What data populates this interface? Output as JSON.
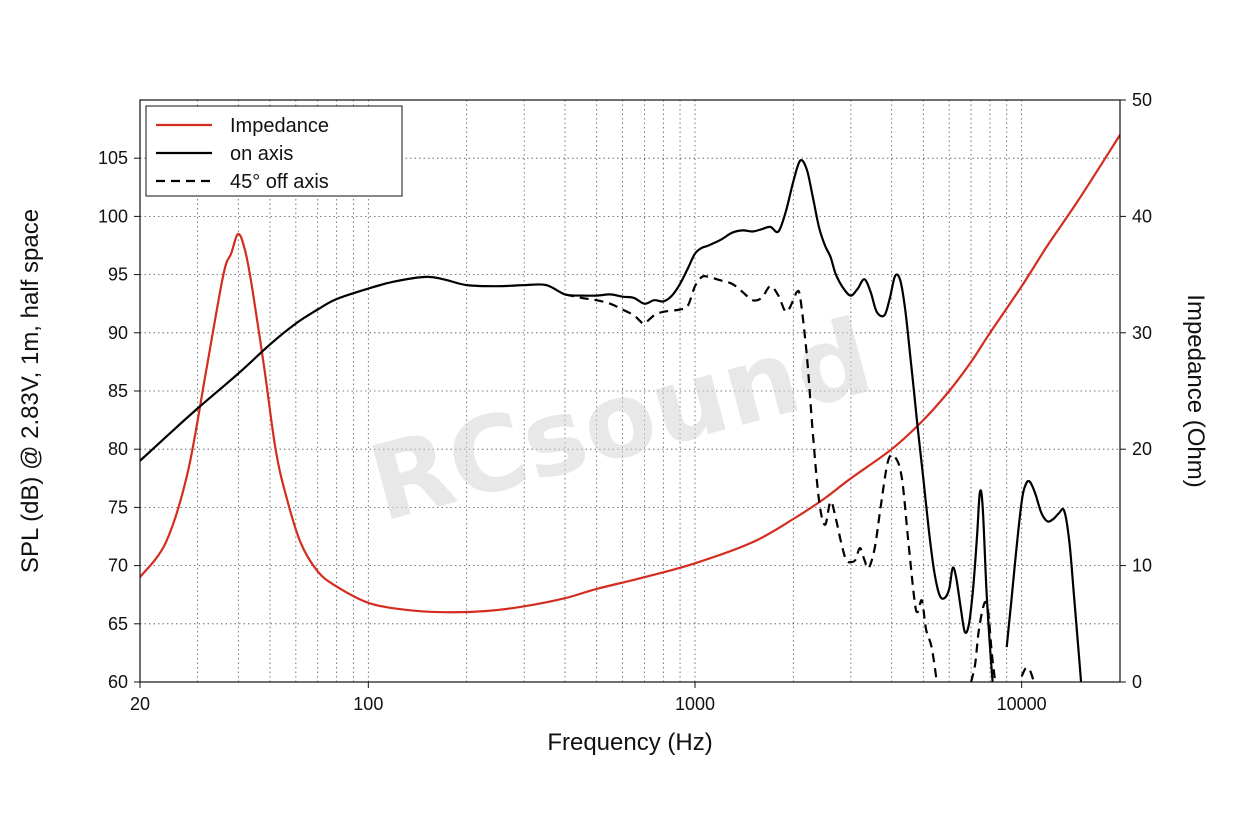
{
  "watermark": "RCsound",
  "chart_data": {
    "type": "line",
    "xlabel": "Frequency (Hz)",
    "ylabel": "SPL (dB) @ 2.83V, 1m, half space",
    "y2label": "Impedance (Ohm)",
    "xscale": "log",
    "xlim": [
      20,
      20000
    ],
    "ylim": [
      60,
      110
    ],
    "y2lim": [
      0,
      50
    ],
    "x_ticks": [
      20,
      100,
      1000,
      10000
    ],
    "x_tick_labels": [
      "20",
      "100",
      "1000",
      "10000"
    ],
    "y_ticks": [
      60,
      65,
      70,
      75,
      80,
      85,
      90,
      95,
      100,
      105
    ],
    "y2_ticks": [
      0,
      10,
      20,
      30,
      40,
      50
    ],
    "grid": true,
    "legend_position": "top-left",
    "series": [
      {
        "name": "Impedance",
        "axis": "right",
        "color": "#d42d20",
        "dash": "solid",
        "points": [
          [
            20,
            9
          ],
          [
            24,
            12
          ],
          [
            28,
            18
          ],
          [
            32,
            27
          ],
          [
            36,
            35
          ],
          [
            38,
            36.8
          ],
          [
            40,
            38.5
          ],
          [
            42,
            37
          ],
          [
            44,
            34
          ],
          [
            48,
            27
          ],
          [
            52,
            20
          ],
          [
            56,
            16
          ],
          [
            62,
            12
          ],
          [
            70,
            9.5
          ],
          [
            80,
            8.2
          ],
          [
            100,
            6.8
          ],
          [
            130,
            6.2
          ],
          [
            170,
            6.0
          ],
          [
            230,
            6.1
          ],
          [
            300,
            6.5
          ],
          [
            400,
            7.2
          ],
          [
            500,
            8.0
          ],
          [
            700,
            9.0
          ],
          [
            1000,
            10.2
          ],
          [
            1500,
            12.0
          ],
          [
            2000,
            14.0
          ],
          [
            2500,
            15.8
          ],
          [
            3000,
            17.5
          ],
          [
            4000,
            20.0
          ],
          [
            5000,
            22.5
          ],
          [
            6000,
            25.0
          ],
          [
            7000,
            27.5
          ],
          [
            8000,
            30.0
          ],
          [
            10000,
            34.0
          ],
          [
            12000,
            37.5
          ],
          [
            15000,
            41.5
          ],
          [
            20000,
            47.0
          ]
        ]
      },
      {
        "name": "on axis",
        "axis": "left",
        "color": "#000000",
        "dash": "solid",
        "points": [
          [
            20,
            79
          ],
          [
            25,
            81.5
          ],
          [
            30,
            83.5
          ],
          [
            40,
            86.5
          ],
          [
            50,
            89
          ],
          [
            60,
            90.8
          ],
          [
            70,
            92
          ],
          [
            80,
            92.9
          ],
          [
            100,
            93.8
          ],
          [
            120,
            94.4
          ],
          [
            150,
            94.8
          ],
          [
            170,
            94.6
          ],
          [
            200,
            94.1
          ],
          [
            250,
            94.0
          ],
          [
            300,
            94.1
          ],
          [
            350,
            94.1
          ],
          [
            400,
            93.3
          ],
          [
            450,
            93.2
          ],
          [
            500,
            93.2
          ],
          [
            550,
            93.3
          ],
          [
            600,
            93.1
          ],
          [
            650,
            93.0
          ],
          [
            700,
            92.5
          ],
          [
            750,
            92.8
          ],
          [
            800,
            92.7
          ],
          [
            850,
            93.2
          ],
          [
            900,
            94.2
          ],
          [
            950,
            95.5
          ],
          [
            1000,
            96.8
          ],
          [
            1050,
            97.3
          ],
          [
            1100,
            97.5
          ],
          [
            1200,
            98.0
          ],
          [
            1300,
            98.6
          ],
          [
            1400,
            98.8
          ],
          [
            1500,
            98.7
          ],
          [
            1600,
            98.9
          ],
          [
            1700,
            99.1
          ],
          [
            1800,
            98.7
          ],
          [
            1900,
            100.5
          ],
          [
            2000,
            103
          ],
          [
            2100,
            104.8
          ],
          [
            2200,
            104
          ],
          [
            2300,
            101.5
          ],
          [
            2400,
            99
          ],
          [
            2500,
            97.5
          ],
          [
            2600,
            96.5
          ],
          [
            2700,
            95
          ],
          [
            2850,
            93.8
          ],
          [
            3000,
            93.2
          ],
          [
            3150,
            93.8
          ],
          [
            3300,
            94.6
          ],
          [
            3450,
            93.5
          ],
          [
            3600,
            91.8
          ],
          [
            3800,
            91.5
          ],
          [
            3950,
            93
          ],
          [
            4100,
            94.9
          ],
          [
            4250,
            94.5
          ],
          [
            4400,
            92
          ],
          [
            4600,
            87
          ],
          [
            4800,
            82
          ],
          [
            5000,
            77.5
          ],
          [
            5200,
            73
          ],
          [
            5400,
            69.5
          ],
          [
            5600,
            67.5
          ],
          [
            5800,
            67.2
          ],
          [
            6000,
            68
          ],
          [
            6150,
            69.8
          ],
          [
            6300,
            69
          ],
          [
            6500,
            66.5
          ],
          [
            6700,
            64.3
          ],
          [
            6900,
            65
          ],
          [
            7100,
            68
          ],
          [
            7300,
            72.5
          ],
          [
            7450,
            76.3
          ],
          [
            7600,
            75
          ],
          [
            7800,
            68
          ],
          [
            8000,
            63
          ],
          [
            8200,
            59
          ]
        ]
      },
      {
        "name": "on axis (upper band)",
        "axis": "left",
        "color": "#000000",
        "dash": "solid",
        "legend": false,
        "points": [
          [
            9000,
            63
          ],
          [
            9300,
            67
          ],
          [
            9600,
            71
          ],
          [
            10000,
            75.5
          ],
          [
            10300,
            77
          ],
          [
            10600,
            77.2
          ],
          [
            11000,
            76.2
          ],
          [
            11500,
            74.5
          ],
          [
            12000,
            73.8
          ],
          [
            12500,
            74
          ],
          [
            13000,
            74.5
          ],
          [
            13500,
            74.7
          ],
          [
            14000,
            72
          ],
          [
            14500,
            67
          ],
          [
            15000,
            62
          ],
          [
            15300,
            59
          ]
        ]
      },
      {
        "name": "45° off axis",
        "axis": "left",
        "color": "#000000",
        "dash": "dashed",
        "points": [
          [
            400,
            93.3
          ],
          [
            450,
            93.0
          ],
          [
            500,
            92.8
          ],
          [
            550,
            92.5
          ],
          [
            600,
            92.0
          ],
          [
            650,
            91.5
          ],
          [
            680,
            91.0
          ],
          [
            700,
            90.8
          ],
          [
            750,
            91.5
          ],
          [
            800,
            91.8
          ],
          [
            900,
            92.0
          ],
          [
            950,
            92.3
          ],
          [
            1000,
            94.0
          ],
          [
            1050,
            94.8
          ],
          [
            1100,
            94.8
          ],
          [
            1200,
            94.5
          ],
          [
            1300,
            94.2
          ],
          [
            1400,
            93.5
          ],
          [
            1500,
            92.8
          ],
          [
            1600,
            93.0
          ],
          [
            1700,
            94.0
          ],
          [
            1800,
            93.2
          ],
          [
            1900,
            91.8
          ],
          [
            2000,
            92.8
          ],
          [
            2050,
            93.5
          ],
          [
            2100,
            93.0
          ],
          [
            2200,
            88
          ],
          [
            2300,
            81
          ],
          [
            2400,
            75.5
          ],
          [
            2500,
            73.5
          ],
          [
            2600,
            75.5
          ],
          [
            2700,
            74
          ],
          [
            2800,
            72
          ],
          [
            2900,
            70.5
          ],
          [
            3000,
            70.3
          ],
          [
            3100,
            70.5
          ],
          [
            3200,
            71.5
          ],
          [
            3300,
            70.5
          ],
          [
            3400,
            69.8
          ],
          [
            3550,
            71.5
          ],
          [
            3700,
            75
          ],
          [
            3900,
            79
          ],
          [
            4100,
            79.3
          ],
          [
            4300,
            77.5
          ],
          [
            4500,
            72
          ],
          [
            4700,
            67
          ],
          [
            4800,
            66
          ],
          [
            4950,
            67
          ],
          [
            5100,
            64.5
          ],
          [
            5300,
            63
          ],
          [
            5500,
            60
          ]
        ]
      },
      {
        "name": "45° off axis (upper segment 1)",
        "axis": "left",
        "color": "#000000",
        "dash": "dashed",
        "legend": false,
        "points": [
          [
            7000,
            60
          ],
          [
            7200,
            61.5
          ],
          [
            7400,
            64.5
          ],
          [
            7700,
            66.8
          ],
          [
            7900,
            66
          ],
          [
            8100,
            62.5
          ],
          [
            8300,
            60
          ]
        ]
      },
      {
        "name": "45° off axis (upper segment 2)",
        "axis": "left",
        "color": "#000000",
        "dash": "dashed",
        "legend": false,
        "points": [
          [
            10000,
            60.5
          ],
          [
            10300,
            61.2
          ],
          [
            10600,
            61
          ],
          [
            10900,
            60
          ]
        ]
      }
    ]
  }
}
